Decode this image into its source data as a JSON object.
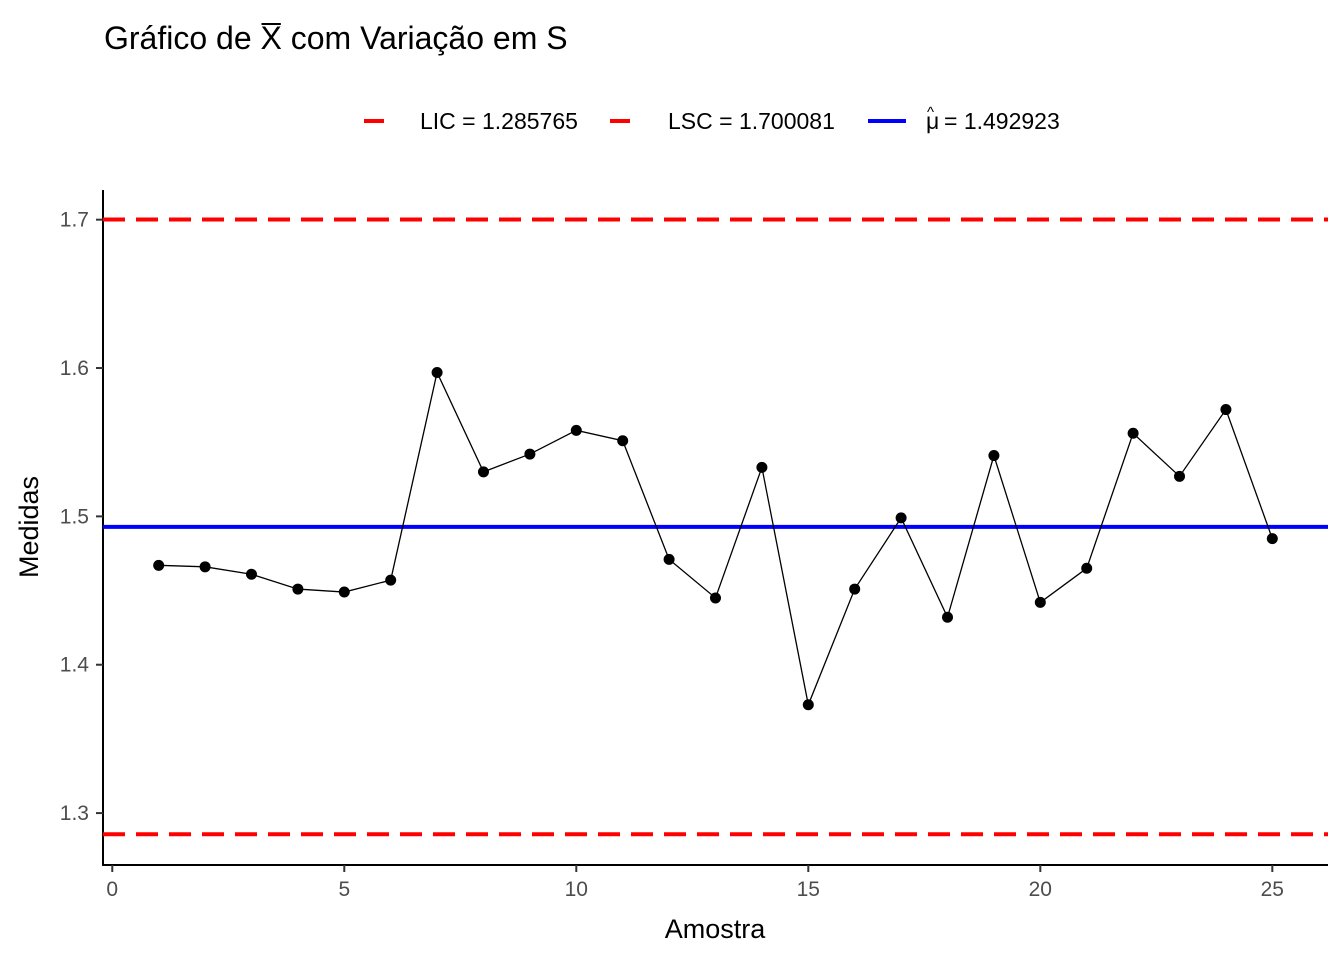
{
  "chart_data": {
    "type": "line",
    "title": "Gráfico de X com Variação em S",
    "title_parts": {
      "before": "Gráfico de ",
      "xbar": "X",
      "after": " com Variação em S"
    },
    "xlabel": "Amostra",
    "ylabel": "Medidas",
    "xlim": [
      -0.2,
      26.2
    ],
    "ylim": [
      1.265,
      1.72
    ],
    "x_ticks": [
      0,
      5,
      10,
      15,
      20,
      25
    ],
    "y_ticks": [
      1.3,
      1.4,
      1.5,
      1.6,
      1.7
    ],
    "x_tick_labels": [
      "0",
      "5",
      "10",
      "15",
      "20",
      "25"
    ],
    "y_tick_labels": [
      "1.3",
      "1.4",
      "1.5",
      "1.6",
      "1.7"
    ],
    "grid": false,
    "legend_position": "top",
    "series": [
      {
        "x": [
          1,
          2,
          3,
          4,
          5,
          6,
          7,
          8,
          9,
          10,
          11,
          12,
          13,
          14,
          15,
          16,
          17,
          18,
          19,
          20,
          21,
          22,
          23,
          24,
          25
        ],
        "y": [
          1.467,
          1.466,
          1.461,
          1.451,
          1.449,
          1.457,
          1.597,
          1.53,
          1.542,
          1.558,
          1.551,
          1.471,
          1.445,
          1.533,
          1.373,
          1.451,
          1.499,
          1.432,
          1.541,
          1.442,
          1.465,
          1.556,
          1.527,
          1.572,
          1.485
        ],
        "color": "#000000"
      }
    ],
    "reference_lines": [
      {
        "label": "LIC = 1.285765",
        "value": 1.285765,
        "color": "#ff0000",
        "style": "dashed"
      },
      {
        "label": "LSC = 1.700081",
        "value": 1.700081,
        "color": "#ff0000",
        "style": "dashed"
      },
      {
        "label_value": "= 1.492923",
        "value": 1.492923,
        "color": "#0000ff",
        "style": "solid",
        "symbol": "mu-hat"
      }
    ]
  }
}
